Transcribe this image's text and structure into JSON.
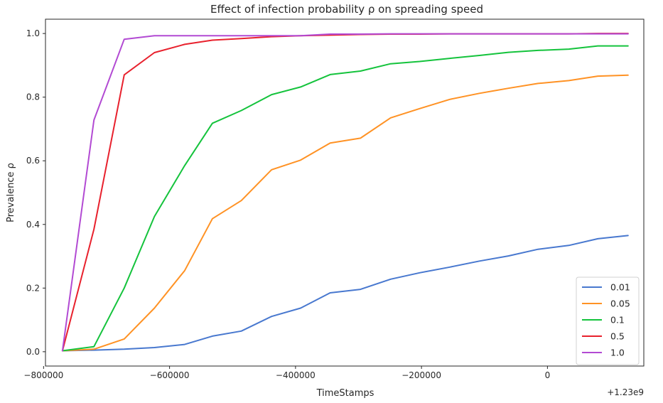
{
  "chart_data": {
    "type": "line",
    "title": "Effect of infection probability ρ on spreading speed",
    "xlabel": "TimeStamps",
    "ylabel": "Prevalence ρ",
    "x_offset_label": "+1.23e9",
    "xlim": [
      1229203000,
      1230153000
    ],
    "ylim": [
      -0.045,
      1.045
    ],
    "x_ticks": [
      -800000,
      -600000,
      -400000,
      -200000,
      0
    ],
    "x_tick_labels": [
      "−800000",
      "−600000",
      "−400000",
      "−200000",
      "0"
    ],
    "y_ticks": [
      0.0,
      0.2,
      0.4,
      0.6,
      0.8,
      1.0
    ],
    "y_tick_labels": [
      "0.0",
      "0.2",
      "0.4",
      "0.6",
      "0.8",
      "1.0"
    ],
    "grid": false,
    "legend_position": "lower-right",
    "x": [
      1229230000,
      1229280000,
      1229328000,
      1229376000,
      1229424000,
      1229468000,
      1229514000,
      1229562000,
      1229608000,
      1229655000,
      1229703000,
      1229751000,
      1229797000,
      1229845000,
      1229892000,
      1229938000,
      1229985000,
      1230034000,
      1230080000,
      1230128000
    ],
    "series": [
      {
        "name": "0.01",
        "color": "#4878cf",
        "values": [
          0.003,
          0.005,
          0.008,
          0.013,
          0.023,
          0.049,
          0.065,
          0.111,
          0.137,
          0.185,
          0.196,
          0.228,
          0.248,
          0.266,
          0.285,
          0.301,
          0.322,
          0.334,
          0.355,
          0.365
        ]
      },
      {
        "name": "0.05",
        "color": "#ff9224",
        "values": [
          0.003,
          0.008,
          0.04,
          0.137,
          0.255,
          0.418,
          0.475,
          0.572,
          0.602,
          0.656,
          0.671,
          0.735,
          0.764,
          0.793,
          0.812,
          0.828,
          0.843,
          0.852,
          0.866,
          0.869
        ]
      },
      {
        "name": "0.1",
        "color": "#14c33c",
        "values": [
          0.003,
          0.016,
          0.2,
          0.425,
          0.585,
          0.718,
          0.758,
          0.808,
          0.832,
          0.871,
          0.882,
          0.905,
          0.912,
          0.922,
          0.931,
          0.941,
          0.947,
          0.951,
          0.961,
          0.961
        ]
      },
      {
        "name": "0.5",
        "color": "#e8212d",
        "values": [
          0.003,
          0.385,
          0.87,
          0.94,
          0.966,
          0.979,
          0.984,
          0.99,
          0.993,
          0.995,
          0.997,
          0.998,
          0.998,
          0.999,
          0.999,
          0.999,
          0.999,
          0.999,
          1.0,
          1.0
        ]
      },
      {
        "name": "1.0",
        "color": "#b24ad3",
        "values": [
          0.003,
          0.728,
          0.982,
          0.993,
          0.993,
          0.993,
          0.993,
          0.993,
          0.993,
          0.998,
          0.998,
          0.999,
          0.999,
          0.999,
          0.999,
          0.999,
          0.999,
          0.999,
          0.999,
          0.999
        ]
      }
    ]
  }
}
